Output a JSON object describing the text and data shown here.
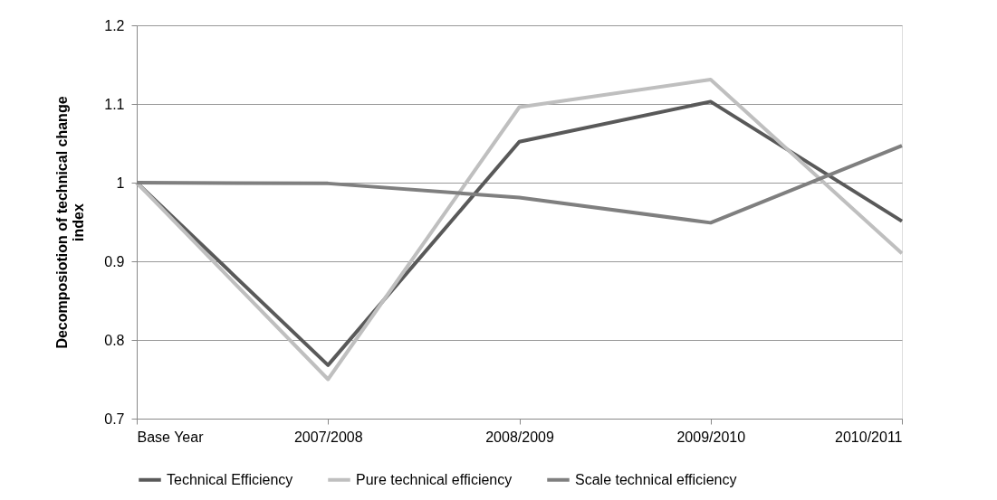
{
  "chart_data": {
    "type": "line",
    "ylabel": "Decomposiotion of technical change index",
    "categories": [
      "Base Year",
      "2007/2008",
      "2008/2009",
      "2009/2010",
      "2010/2011"
    ],
    "series": [
      {
        "name": "Technical Efficiency",
        "color": "#595959",
        "values": [
          1,
          0.768,
          1.052,
          1.103,
          0.951
        ]
      },
      {
        "name": "Pure technical efficiency",
        "color": "#bfbfbf",
        "values": [
          1,
          0.75,
          1.096,
          1.131,
          0.91
        ]
      },
      {
        "name": "Scale technical efficiency",
        "color": "#7f7f7f",
        "values": [
          1,
          0.999,
          0.981,
          0.949,
          1.047
        ]
      }
    ],
    "ylim": [
      0.7,
      1.2
    ],
    "yticks": [
      0.7,
      0.8,
      0.9,
      1,
      1.1,
      1.2
    ],
    "grid": "y",
    "legend": "bottom",
    "marker": "none",
    "line_style": "solid"
  }
}
